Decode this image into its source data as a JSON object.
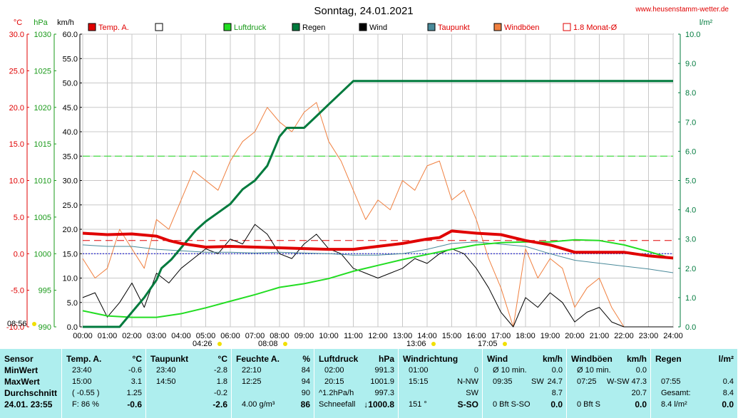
{
  "title": "Sonntag, 24.01.2021",
  "website": "www.heusenstamm-wetter.de",
  "axes": {
    "temp_unit": "°C",
    "hpa_unit": "hPa",
    "kmh_unit": "km/h",
    "rain_unit": "l/m²",
    "temp_ticks": [
      "30.0",
      "25.0",
      "20.0",
      "15.0",
      "10.0",
      "5.0",
      "0.0",
      "-5.0",
      "-10.0"
    ],
    "hpa_ticks": [
      "1030",
      "1025",
      "1020",
      "1015",
      "1010",
      "1005",
      "1000",
      "995",
      "990"
    ],
    "kmh_ticks": [
      "60.0",
      "55.0",
      "50.0",
      "45.0",
      "40.0",
      "35.0",
      "30.0",
      "25.0",
      "20.0",
      "15.0",
      "10.0",
      "5.0",
      "0.0"
    ],
    "rain_ticks": [
      "10.0",
      "9.0",
      "8.0",
      "7.0",
      "6.0",
      "5.0",
      "4.0",
      "3.0",
      "2.0",
      "1.0",
      "0.0"
    ],
    "time_ticks": [
      "00:00",
      "01:00",
      "02:00",
      "03:00",
      "04:00",
      "05:00",
      "06:00",
      "07:00",
      "08:00",
      "09:00",
      "10:00",
      "11:00",
      "12:00",
      "13:00",
      "14:00",
      "15:00",
      "16:00",
      "17:00",
      "18:00",
      "19:00",
      "20:00",
      "21:00",
      "22:00",
      "23:00",
      "24:00"
    ]
  },
  "legend": [
    {
      "label": "Temp. A.",
      "color": "#e00000"
    },
    {
      "label": "",
      "color": "#ffffff"
    },
    {
      "label": "Luftdruck",
      "color": "#22dd22"
    },
    {
      "label": "Regen",
      "color": "#007a3d"
    },
    {
      "label": "Wind",
      "color": "#000000"
    },
    {
      "label": "Taupunkt",
      "color": "#4a8a9a"
    },
    {
      "label": "Windböen",
      "color": "#f08040"
    },
    {
      "label": "1.8 Monat-Ø",
      "color": "#e00000"
    }
  ],
  "sun_markers": [
    {
      "label": "08:56"
    },
    {
      "label": "04:26"
    },
    {
      "label": "08:08"
    },
    {
      "label": "13:06"
    },
    {
      "label": "17:05"
    }
  ],
  "chart_data": {
    "type": "line",
    "title": "Sonntag, 24.01.2021",
    "x_unit": "hour",
    "xlim": [
      0,
      24
    ],
    "ylim_temp": [
      -10,
      30
    ],
    "ylim_hpa": [
      990,
      1030
    ],
    "ylim_kmh": [
      0,
      60
    ],
    "ylim_rain": [
      0,
      10
    ],
    "grid": true,
    "reference_lines": {
      "monthly_avg_temp": 1.8,
      "green_dashed_kmh": 35,
      "blue_dotted_temp": 0
    },
    "series": [
      {
        "name": "Temp. A.",
        "axis": "temp",
        "x": [
          0,
          1,
          2,
          3,
          3.5,
          4,
          5,
          6,
          7,
          8,
          9,
          10,
          11,
          12,
          13,
          14,
          14.5,
          15,
          16,
          17,
          18,
          19,
          20,
          21,
          22,
          23,
          24
        ],
        "y": [
          2.8,
          2.6,
          2.7,
          2.4,
          1.8,
          1.4,
          0.9,
          1.0,
          0.9,
          0.8,
          0.7,
          0.6,
          0.6,
          1.0,
          1.4,
          2.0,
          2.2,
          3.1,
          2.8,
          2.6,
          1.8,
          1.2,
          0.2,
          0.2,
          0.2,
          -0.3,
          -0.6
        ]
      },
      {
        "name": "Luftdruck",
        "axis": "hpa",
        "x": [
          0,
          1,
          2,
          3,
          4,
          5,
          6,
          7,
          8,
          9,
          10,
          11,
          12,
          13,
          14,
          15,
          16,
          17,
          18,
          19,
          20,
          21,
          22,
          23,
          24
        ],
        "y": [
          992.2,
          991.5,
          991.3,
          991.3,
          991.8,
          992.6,
          993.5,
          994.4,
          995.4,
          995.9,
          996.6,
          997.6,
          998.4,
          999.2,
          999.9,
          1000.6,
          1001.2,
          1001.5,
          1001.6,
          1001.6,
          1001.9,
          1001.8,
          1001.2,
          1000.3,
          999.3
        ]
      },
      {
        "name": "Regen",
        "axis": "rain",
        "x": [
          0,
          1.5,
          2,
          2.5,
          3,
          3.2,
          3.6,
          4,
          4.3,
          4.6,
          5,
          5.5,
          6,
          6.5,
          7,
          7.5,
          8,
          8.3,
          8.6,
          9,
          9.5,
          10,
          10.5,
          11,
          12,
          13,
          16,
          20,
          24
        ],
        "y": [
          0,
          0,
          0.5,
          1,
          1.6,
          2,
          2.3,
          2.7,
          3.0,
          3.3,
          3.6,
          3.9,
          4.2,
          4.7,
          5.0,
          5.5,
          6.5,
          6.8,
          6.8,
          6.8,
          7.2,
          7.6,
          8.0,
          8.4,
          8.4,
          8.4,
          8.4,
          8.4,
          8.4
        ]
      },
      {
        "name": "Wind",
        "axis": "kmh",
        "x": [
          0,
          0.5,
          1,
          1.5,
          2,
          2.5,
          3,
          3.5,
          4,
          4.5,
          5,
          5.5,
          6,
          6.5,
          7,
          7.5,
          8,
          8.5,
          9,
          9.5,
          10,
          10.5,
          11,
          11.5,
          12,
          12.5,
          13,
          13.5,
          14,
          14.5,
          15,
          15.5,
          16,
          16.5,
          17,
          17.5,
          18,
          18.5,
          19,
          19.5,
          20,
          20.5,
          21,
          21.5,
          22,
          22.5,
          23,
          23.5,
          24
        ],
        "y": [
          6,
          7,
          2,
          5,
          9,
          4,
          11,
          9,
          12,
          14,
          16,
          15,
          18,
          17,
          21,
          19,
          15,
          14,
          17,
          19,
          16,
          15,
          12,
          11,
          10,
          11,
          12,
          14,
          13,
          15,
          16,
          15,
          12,
          8,
          3,
          0,
          6,
          4,
          7,
          5,
          1,
          3,
          4,
          1,
          0,
          0,
          0,
          0,
          0
        ]
      },
      {
        "name": "Taupunkt",
        "axis": "temp",
        "x": [
          0,
          1,
          2,
          3,
          4,
          5,
          6,
          7,
          8,
          9,
          10,
          11,
          12,
          13,
          14,
          15,
          16,
          17,
          18,
          19,
          20,
          21,
          22,
          23,
          24
        ],
        "y": [
          1.2,
          1.0,
          1.0,
          0.6,
          0.4,
          0.2,
          0.2,
          0.1,
          0.2,
          0.1,
          0.0,
          -0.2,
          -0.2,
          0.0,
          0.6,
          1.4,
          1.6,
          1.3,
          1.0,
          0.0,
          -0.9,
          -1.3,
          -1.7,
          -2.1,
          -2.6
        ]
      },
      {
        "name": "Windböen",
        "axis": "kmh",
        "x": [
          0,
          0.5,
          1,
          1.5,
          2,
          2.5,
          3,
          3.5,
          4,
          4.5,
          5,
          5.5,
          6,
          6.5,
          7,
          7.5,
          8,
          8.5,
          9,
          9.5,
          10,
          10.5,
          11,
          11.5,
          12,
          12.5,
          13,
          13.5,
          14,
          14.5,
          15,
          15.5,
          16,
          16.5,
          17,
          17.5,
          18,
          18.5,
          19,
          19.5,
          20,
          20.5,
          21,
          21.5,
          22,
          22.5,
          23,
          23.5,
          24
        ],
        "y": [
          14,
          10,
          12,
          20,
          16,
          12,
          22,
          20,
          26,
          32,
          30,
          28,
          34,
          38,
          40,
          45,
          42,
          40,
          44,
          46,
          38,
          34,
          28,
          22,
          26,
          24,
          30,
          28,
          33,
          34,
          26,
          28,
          22,
          14,
          8,
          0,
          16,
          10,
          14,
          12,
          4,
          8,
          10,
          4,
          0,
          0,
          0,
          0,
          0
        ]
      }
    ]
  },
  "panel": {
    "sensor": {
      "header": "Sensor",
      "min": "MinWert",
      "max": "MaxWert",
      "avg": "Durchschnitt",
      "date": "24.01. 23:55"
    },
    "temp": {
      "header": "Temp. A.",
      "unit": "°C",
      "min_time": "23:40",
      "min": "-0.6",
      "max_time": "15:00",
      "max": "3.1",
      "avg_note": "( -0.55 )",
      "avg": "1.25",
      "foot_note": "F: 86 %",
      "foot": "-0.6"
    },
    "dew": {
      "header": "Taupunkt",
      "unit": "°C",
      "min_time": "23:40",
      "min": "-2.8",
      "max_time": "14:50",
      "max": "1.8",
      "avg": "-0.2",
      "foot": "-2.6"
    },
    "hum": {
      "header": "Feuchte A.",
      "unit": "%",
      "min_time": "22:10",
      "min": "84",
      "max_time": "12:25",
      "max": "94",
      "avg": "90",
      "foot_note": "4.00 g/m³",
      "foot": "86"
    },
    "press": {
      "header": "Luftdruck",
      "unit": "hPa",
      "min_time": "02:00",
      "min": "991.3",
      "max_time": "20:15",
      "max": "1001.9",
      "avg_note": "^1.2hPa/h",
      "avg": "997.3",
      "foot_note": "Schneefall",
      "foot": "↓1000.8"
    },
    "dir": {
      "header": "Windrichtung",
      "min_time": "01:00",
      "min": "0",
      "max_time": "15:15",
      "max": "N-NW",
      "avg": "SW",
      "foot_note": "151 °",
      "foot": "S-SO"
    },
    "wind": {
      "header": "Wind",
      "unit": "km/h",
      "min_label": "Ø 10 min.",
      "min": "0.0",
      "max_time": "09:35",
      "max_dir": "SW",
      "max": "24.7",
      "avg": "8.7",
      "foot_note": "0 Bft S-SO",
      "foot": "0.0"
    },
    "gust": {
      "header": "Windböen",
      "unit": "km/h",
      "min_label": "Ø 10 min.",
      "min": "0.0",
      "max_time": "07:25",
      "max_dir": "W-SW",
      "max": "47.3",
      "avg": "20.7",
      "foot_note": "0 Bft S",
      "foot": "0.0"
    },
    "rain": {
      "header": "Regen",
      "unit": "l/m²",
      "max_time": "07:55",
      "max": "0.4",
      "avg_label": "Gesamt:",
      "avg": "8.4",
      "foot_note": "8.4 l/m²",
      "foot": "0.0"
    }
  }
}
